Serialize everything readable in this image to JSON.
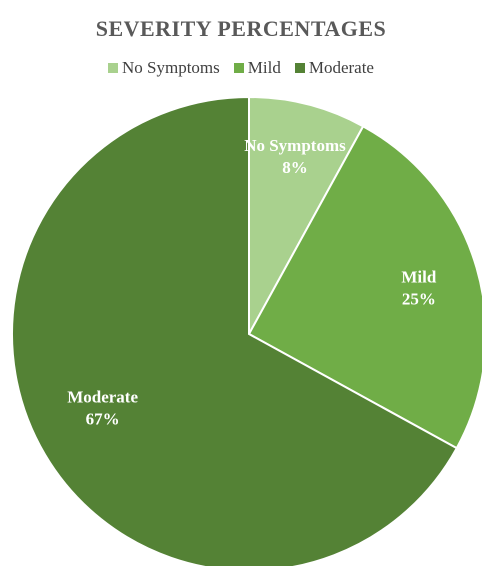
{
  "chart_data": {
    "type": "pie",
    "title": "SEVERITY PERCENTAGES",
    "categories": [
      "No Symptoms",
      "Mild",
      "Moderate"
    ],
    "values": [
      8,
      25,
      67
    ],
    "value_labels": [
      "8%",
      "25%",
      "67%"
    ],
    "colors": [
      "#a9d18e",
      "#70ad47",
      "#548235"
    ],
    "legend": {
      "placement": "top",
      "entries": [
        "No Symptoms",
        "Mild",
        "Moderate"
      ]
    },
    "data_labels": {
      "show_category": true,
      "show_percent": true
    }
  }
}
